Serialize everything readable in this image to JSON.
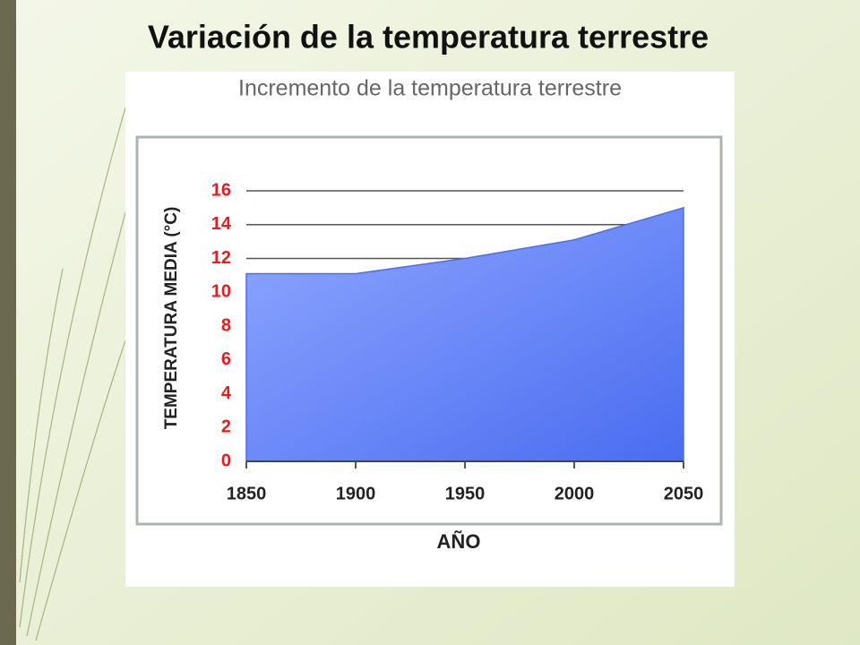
{
  "slide_title": "Variación de la temperatura terrestre",
  "chart_data": {
    "type": "area",
    "title": "Incremento de la temperatura terrestre",
    "y_label": "TEMPERATURA MEDIA (°C)",
    "x_label": "AÑO",
    "x": [
      1850,
      1900,
      1950,
      2000,
      2050
    ],
    "values": [
      11.1,
      11.1,
      12,
      13.1,
      15
    ],
    "color": "#4a6cf0",
    "xlim": [
      1850,
      2050
    ],
    "xticks": [
      1850,
      1900,
      1950,
      2000,
      2050
    ],
    "ylim": [
      0,
      16
    ],
    "yticks": [
      0,
      2,
      4,
      6,
      8,
      10,
      12,
      14,
      16
    ],
    "grid": true
  }
}
